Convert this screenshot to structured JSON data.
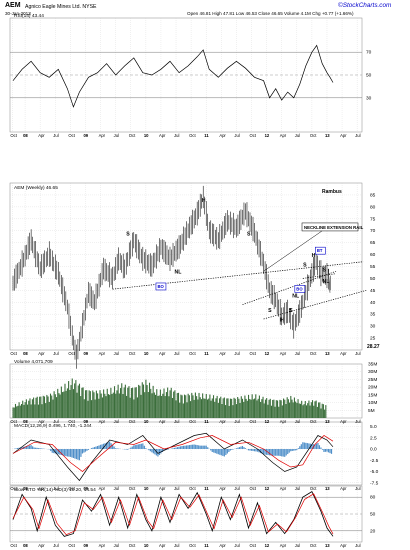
{
  "header": {
    "ticker": "AEM",
    "company": "Agnico Eagle Mines Ltd. NYSE",
    "date": "30-Jan-2013",
    "ohlc": "Open 46.81   High 47.81   Low 46.53   Close 46.65   Volume 4.1M   Chg +0.77 (+1.66%)",
    "logo": "©StockCharts.com"
  },
  "chart_data": [
    {
      "type": "line",
      "id": "rsi",
      "title": "RSI(14) 43.44",
      "ylim": [
        0,
        100
      ],
      "ticks": [
        30,
        50,
        70
      ],
      "x_date_range": [
        "2007-10",
        "2013-07"
      ],
      "series": [
        {
          "values": [
            [
              2007.8,
              45
            ],
            [
              2007.95,
              55
            ],
            [
              2008.1,
              62
            ],
            [
              2008.25,
              52
            ],
            [
              2008.4,
              48
            ],
            [
              2008.55,
              55
            ],
            [
              2008.7,
              38
            ],
            [
              2008.8,
              22
            ],
            [
              2008.9,
              35
            ],
            [
              2009.05,
              48
            ],
            [
              2009.2,
              52
            ],
            [
              2009.35,
              60
            ],
            [
              2009.5,
              50
            ],
            [
              2009.65,
              58
            ],
            [
              2009.8,
              65
            ],
            [
              2009.95,
              52
            ],
            [
              2010.1,
              50
            ],
            [
              2010.25,
              55
            ],
            [
              2010.4,
              62
            ],
            [
              2010.55,
              52
            ],
            [
              2010.7,
              58
            ],
            [
              2010.85,
              66
            ],
            [
              2010.95,
              72
            ],
            [
              2011.05,
              55
            ],
            [
              2011.2,
              48
            ],
            [
              2011.35,
              56
            ],
            [
              2011.5,
              62
            ],
            [
              2011.65,
              56
            ],
            [
              2011.8,
              48
            ],
            [
              2011.95,
              45
            ],
            [
              2012.05,
              30
            ],
            [
              2012.15,
              38
            ],
            [
              2012.25,
              28
            ],
            [
              2012.35,
              35
            ],
            [
              2012.45,
              30
            ],
            [
              2012.55,
              42
            ],
            [
              2012.65,
              58
            ],
            [
              2012.75,
              70
            ],
            [
              2012.83,
              76
            ],
            [
              2012.92,
              60
            ],
            [
              2013.0,
              52
            ],
            [
              2013.05,
              48
            ],
            [
              2013.1,
              43.44
            ]
          ]
        }
      ]
    },
    {
      "type": "bar",
      "id": "price",
      "title": "AEM (Weekly) 46.65",
      "subtitle": "Rambus",
      "ylim": [
        20,
        90
      ],
      "ticks": [
        20,
        25,
        30,
        35,
        40,
        45,
        50,
        55,
        60,
        65,
        70,
        75,
        80,
        85
      ],
      "last_label": "28.27",
      "annotations": [
        "S",
        "H",
        "S",
        "NL",
        "BO",
        "NL",
        "S",
        "S",
        "H",
        "BO",
        "H",
        "S",
        "S",
        "BT",
        "NL",
        "NECKLINE EXTENSION RAIL"
      ],
      "series": [
        {
          "values": [
            [
              2007.8,
              48
            ],
            [
              2007.95,
              56
            ],
            [
              2008.1,
              66
            ],
            [
              2008.25,
              54
            ],
            [
              2008.4,
              60
            ],
            [
              2008.55,
              52
            ],
            [
              2008.7,
              38
            ],
            [
              2008.78,
              26
            ],
            [
              2008.85,
              17
            ],
            [
              2008.95,
              30
            ],
            [
              2009.05,
              44
            ],
            [
              2009.15,
              40
            ],
            [
              2009.3,
              54
            ],
            [
              2009.45,
              50
            ],
            [
              2009.55,
              58
            ],
            [
              2009.65,
              54
            ],
            [
              2009.8,
              66
            ],
            [
              2009.95,
              58
            ],
            [
              2010.1,
              55
            ],
            [
              2010.25,
              63
            ],
            [
              2010.4,
              58
            ],
            [
              2010.55,
              63
            ],
            [
              2010.7,
              70
            ],
            [
              2010.85,
              77
            ],
            [
              2010.95,
              84
            ],
            [
              2011.05,
              70
            ],
            [
              2011.2,
              66
            ],
            [
              2011.35,
              74
            ],
            [
              2011.5,
              71
            ],
            [
              2011.65,
              78
            ],
            [
              2011.8,
              69
            ],
            [
              2011.95,
              56
            ],
            [
              2012.05,
              45
            ],
            [
              2012.15,
              41
            ],
            [
              2012.25,
              34
            ],
            [
              2012.35,
              36
            ],
            [
              2012.45,
              30
            ],
            [
              2012.55,
              36
            ],
            [
              2012.65,
              44
            ],
            [
              2012.75,
              52
            ],
            [
              2012.82,
              57
            ],
            [
              2012.9,
              52
            ],
            [
              2013.0,
              51
            ],
            [
              2013.08,
              46.65
            ]
          ]
        }
      ]
    },
    {
      "type": "bar",
      "id": "volume",
      "title": "Volume 4,071,709",
      "ylim": [
        0,
        35000000
      ],
      "ticks": [
        "5M",
        "10M",
        "15M",
        "20M",
        "25M",
        "30M",
        "35M"
      ],
      "series": [
        {
          "values": [
            [
              2007.8,
              7
            ],
            [
              2008.0,
              10
            ],
            [
              2008.2,
              12
            ],
            [
              2008.4,
              13
            ],
            [
              2008.6,
              17
            ],
            [
              2008.8,
              22
            ],
            [
              2009.0,
              16
            ],
            [
              2009.2,
              15
            ],
            [
              2009.4,
              16
            ],
            [
              2009.6,
              19
            ],
            [
              2009.8,
              17
            ],
            [
              2010.0,
              21
            ],
            [
              2010.2,
              15
            ],
            [
              2010.4,
              17
            ],
            [
              2010.6,
              13
            ],
            [
              2010.8,
              14
            ],
            [
              2011.0,
              13
            ],
            [
              2011.2,
              12
            ],
            [
              2011.4,
              11
            ],
            [
              2011.6,
              12
            ],
            [
              2011.8,
              13
            ],
            [
              2012.0,
              11
            ],
            [
              2012.2,
              10
            ],
            [
              2012.4,
              12
            ],
            [
              2012.6,
              9
            ],
            [
              2012.8,
              10
            ],
            [
              2013.0,
              7
            ]
          ]
        }
      ]
    },
    {
      "type": "line",
      "id": "macd",
      "title": "MACD(12,26,9) 0.496, 1.740, -1.244",
      "ylim": [
        -8,
        6
      ],
      "ticks": [
        -7.5,
        -5.0,
        -2.5,
        0.0,
        2.5,
        5.0
      ],
      "series": [
        {
          "name": "MACD(12,26,9)",
          "values": [
            [
              2007.8,
              -1
            ],
            [
              2008.1,
              2
            ],
            [
              2008.4,
              1
            ],
            [
              2008.7,
              -4
            ],
            [
              2008.9,
              -7
            ],
            [
              2009.1,
              -3
            ],
            [
              2009.4,
              2
            ],
            [
              2009.7,
              1
            ],
            [
              2009.95,
              3
            ],
            [
              2010.2,
              -1
            ],
            [
              2010.5,
              1
            ],
            [
              2010.8,
              3
            ],
            [
              2011.0,
              3.5
            ],
            [
              2011.3,
              0
            ],
            [
              2011.6,
              2
            ],
            [
              2011.85,
              0
            ],
            [
              2012.1,
              -3
            ],
            [
              2012.3,
              -5
            ],
            [
              2012.5,
              -4
            ],
            [
              2012.7,
              0
            ],
            [
              2012.85,
              3
            ],
            [
              2013.0,
              2
            ],
            [
              2013.1,
              0.496
            ]
          ]
        },
        {
          "name": "signal",
          "values": [
            [
              2007.8,
              -1
            ],
            [
              2008.15,
              1.5
            ],
            [
              2008.45,
              1
            ],
            [
              2008.75,
              -3
            ],
            [
              2008.95,
              -5
            ],
            [
              2009.2,
              -2
            ],
            [
              2009.5,
              1.5
            ],
            [
              2009.8,
              1
            ],
            [
              2010.0,
              2
            ],
            [
              2010.3,
              0
            ],
            [
              2010.6,
              1
            ],
            [
              2010.9,
              2.5
            ],
            [
              2011.1,
              3
            ],
            [
              2011.4,
              1
            ],
            [
              2011.7,
              1.5
            ],
            [
              2011.95,
              0
            ],
            [
              2012.2,
              -2.5
            ],
            [
              2012.4,
              -4
            ],
            [
              2012.6,
              -3.5
            ],
            [
              2012.8,
              1
            ],
            [
              2012.95,
              3
            ],
            [
              2013.1,
              1.74
            ]
          ]
        }
      ]
    },
    {
      "type": "line",
      "id": "sto",
      "title": "Slow STO %K(14) %D(3) 10.20, 14.54",
      "ylim": [
        0,
        100
      ],
      "ticks": [
        20,
        50,
        80
      ],
      "series": [
        {
          "name": "%K(14)",
          "values": [
            [
              2007.8,
              40
            ],
            [
              2007.95,
              85
            ],
            [
              2008.1,
              60
            ],
            [
              2008.2,
              20
            ],
            [
              2008.35,
              80
            ],
            [
              2008.5,
              30
            ],
            [
              2008.65,
              10
            ],
            [
              2008.8,
              15
            ],
            [
              2008.95,
              75
            ],
            [
              2009.1,
              55
            ],
            [
              2009.25,
              85
            ],
            [
              2009.4,
              30
            ],
            [
              2009.55,
              80
            ],
            [
              2009.7,
              25
            ],
            [
              2009.85,
              85
            ],
            [
              2010.0,
              40
            ],
            [
              2010.1,
              20
            ],
            [
              2010.25,
              80
            ],
            [
              2010.4,
              35
            ],
            [
              2010.55,
              85
            ],
            [
              2010.7,
              60
            ],
            [
              2010.85,
              88
            ],
            [
              2011.0,
              50
            ],
            [
              2011.1,
              20
            ],
            [
              2011.25,
              80
            ],
            [
              2011.4,
              40
            ],
            [
              2011.55,
              85
            ],
            [
              2011.7,
              25
            ],
            [
              2011.85,
              70
            ],
            [
              2012.0,
              15
            ],
            [
              2012.15,
              35
            ],
            [
              2012.3,
              15
            ],
            [
              2012.45,
              40
            ],
            [
              2012.6,
              80
            ],
            [
              2012.75,
              90
            ],
            [
              2012.9,
              55
            ],
            [
              2013.0,
              25
            ],
            [
              2013.1,
              10.2
            ]
          ]
        },
        {
          "name": "%D(3)",
          "values": [
            [
              2007.8,
              42
            ],
            [
              2007.98,
              80
            ],
            [
              2008.13,
              58
            ],
            [
              2008.23,
              24
            ],
            [
              2008.38,
              75
            ],
            [
              2008.53,
              33
            ],
            [
              2008.68,
              13
            ],
            [
              2008.83,
              20
            ],
            [
              2008.98,
              70
            ],
            [
              2009.13,
              58
            ],
            [
              2009.28,
              80
            ],
            [
              2009.43,
              35
            ],
            [
              2009.58,
              75
            ],
            [
              2009.73,
              30
            ],
            [
              2009.88,
              80
            ],
            [
              2010.03,
              38
            ],
            [
              2010.13,
              24
            ],
            [
              2010.28,
              75
            ],
            [
              2010.43,
              40
            ],
            [
              2010.58,
              80
            ],
            [
              2010.73,
              62
            ],
            [
              2010.88,
              84
            ],
            [
              2011.03,
              48
            ],
            [
              2011.13,
              24
            ],
            [
              2011.28,
              75
            ],
            [
              2011.43,
              44
            ],
            [
              2011.58,
              80
            ],
            [
              2011.73,
              30
            ],
            [
              2011.88,
              65
            ],
            [
              2012.03,
              18
            ],
            [
              2012.18,
              32
            ],
            [
              2012.33,
              18
            ],
            [
              2012.48,
              44
            ],
            [
              2012.63,
              76
            ],
            [
              2012.78,
              86
            ],
            [
              2012.93,
              52
            ],
            [
              2013.03,
              28
            ],
            [
              2013.1,
              14.54
            ]
          ]
        }
      ]
    }
  ],
  "x_axis_labels": [
    "Oct",
    "08",
    "Apr",
    "Jul",
    "Oct",
    "09",
    "Apr",
    "Jul",
    "Oct",
    "10",
    "Apr",
    "Jul",
    "Oct",
    "11",
    "Apr",
    "Jul",
    "Oct",
    "12",
    "Apr",
    "Jul",
    "Oct",
    "13",
    "Apr",
    "Jul"
  ],
  "colors": {
    "up": "#0000ff",
    "volume": "#3b6e3b",
    "macd_hist": "#4f8fc9",
    "signal": "#e00000",
    "line": "#000000",
    "grid": "#cccccc"
  }
}
